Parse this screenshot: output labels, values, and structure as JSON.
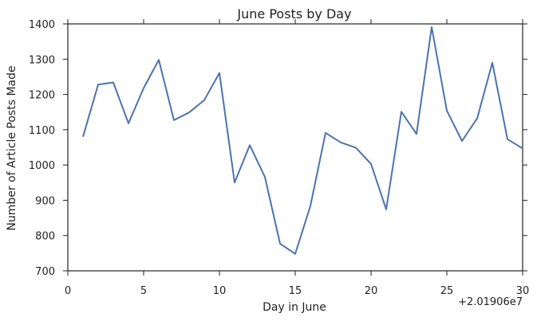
{
  "chart_data": {
    "type": "line",
    "title": "June Posts by Day",
    "xlabel": "Day in June",
    "ylabel": "Number of Article Posts Made",
    "x_offset_label": "+2.01906e7",
    "xlim": [
      0,
      30
    ],
    "ylim": [
      700,
      1400
    ],
    "xticks": [
      0,
      5,
      10,
      15,
      20,
      25,
      30
    ],
    "xtick_labels": [
      "0",
      "5",
      "10",
      "15",
      "20",
      "25",
      "30"
    ],
    "yticks": [
      700,
      800,
      900,
      1000,
      1100,
      1200,
      1300,
      1400
    ],
    "ytick_labels": [
      "700",
      "800",
      "900",
      "1000",
      "1100",
      "1200",
      "1300",
      "1400"
    ],
    "grid": false,
    "line_color": "#4c72b0",
    "series": [
      {
        "x": [
          1,
          2,
          3,
          4,
          5,
          6,
          7,
          8,
          9,
          10,
          11,
          12,
          13,
          14,
          15,
          16,
          17,
          18,
          19,
          20,
          21,
          22,
          23,
          24,
          25,
          26,
          27,
          28,
          29,
          30
        ],
        "values": [
          1080,
          1228,
          1234,
          1118,
          1218,
          1298,
          1127,
          1149,
          1184,
          1261,
          950,
          1056,
          966,
          777,
          748,
          884,
          1091,
          1064,
          1049,
          1003,
          874,
          1151,
          1088,
          1391,
          1154,
          1068,
          1132,
          1290,
          1073,
          1047
        ]
      }
    ]
  }
}
